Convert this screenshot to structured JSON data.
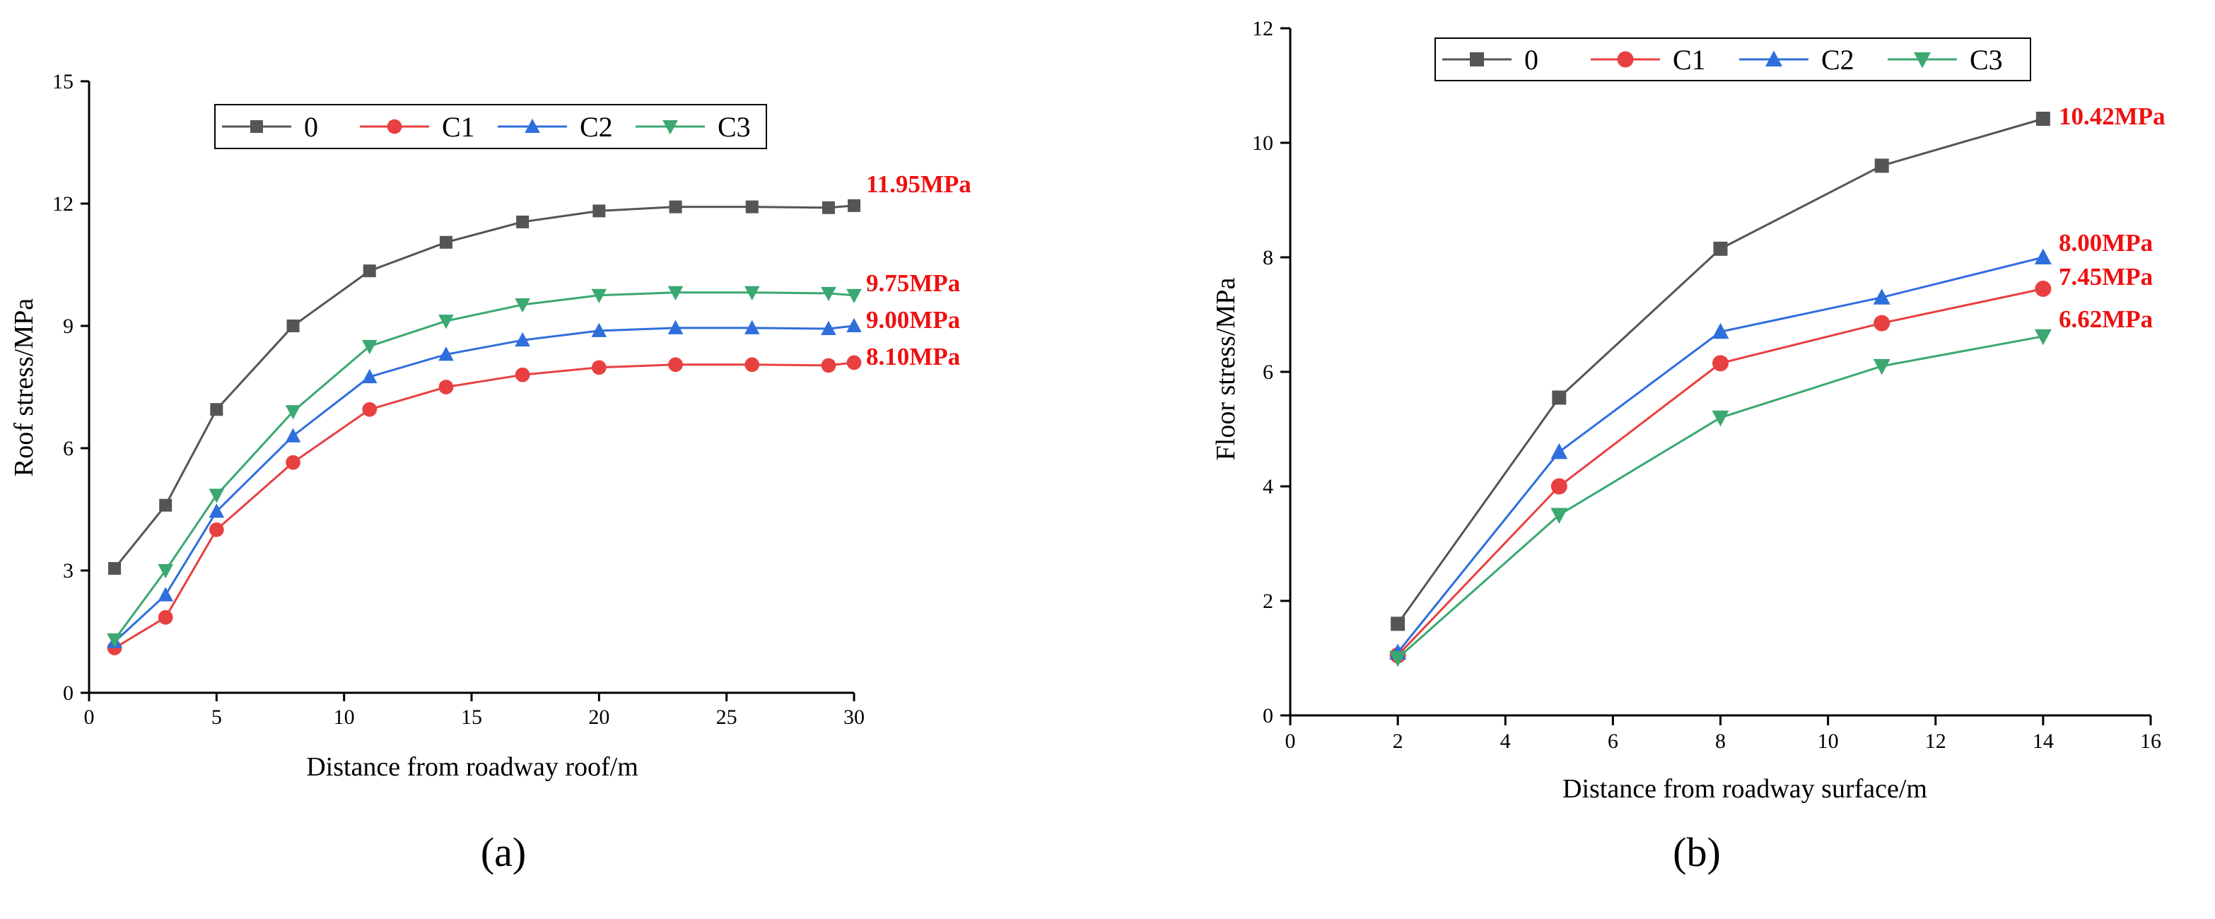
{
  "chart_data": [
    {
      "type": "line",
      "panel": "a",
      "caption": "(a)",
      "xlabel": "Distance from roadway roof/m",
      "ylabel": "Roof stress/MPa",
      "xlim": [
        0,
        30
      ],
      "ylim": [
        0,
        15
      ],
      "xticks": [
        0,
        5,
        10,
        15,
        20,
        25,
        30
      ],
      "yticks": [
        0,
        3,
        6,
        9,
        12,
        15
      ],
      "legend_position": "top-center",
      "x": [
        1,
        3,
        5,
        8,
        11,
        14,
        17,
        20,
        23,
        26,
        29,
        30
      ],
      "series": [
        {
          "name": "0",
          "marker": "square",
          "color": "#555555",
          "values": [
            3.05,
            4.6,
            6.95,
            9.0,
            10.35,
            11.05,
            11.55,
            11.82,
            11.92,
            11.92,
            11.9,
            11.95
          ]
        },
        {
          "name": "C1",
          "marker": "circle",
          "color": "#e84040",
          "values": [
            1.1,
            1.85,
            4.0,
            5.65,
            6.95,
            7.5,
            7.8,
            7.98,
            8.05,
            8.05,
            8.03,
            8.1
          ]
        },
        {
          "name": "C2",
          "marker": "triangle-up",
          "color": "#2f6fdc",
          "values": [
            1.25,
            2.4,
            4.45,
            6.3,
            7.75,
            8.3,
            8.65,
            8.88,
            8.95,
            8.95,
            8.93,
            9.0
          ]
        },
        {
          "name": "C3",
          "marker": "triangle-down",
          "color": "#3aa870",
          "values": [
            1.3,
            3.0,
            4.85,
            6.9,
            8.5,
            9.12,
            9.52,
            9.75,
            9.82,
            9.82,
            9.8,
            9.75
          ]
        }
      ],
      "end_labels": [
        {
          "series": "0",
          "text": "11.95MPa",
          "color": "#ee1111"
        },
        {
          "series": "C3",
          "text": "9.75MPa",
          "color": "#ee1111"
        },
        {
          "series": "C2",
          "text": "9.00MPa",
          "color": "#ee1111"
        },
        {
          "series": "C1",
          "text": "8.10MPa",
          "color": "#ee1111"
        }
      ]
    },
    {
      "type": "line",
      "panel": "b",
      "caption": "(b)",
      "xlabel": "Distance from roadway surface/m",
      "ylabel": "Floor stress/MPa",
      "xlim": [
        0,
        16
      ],
      "ylim": [
        0,
        12
      ],
      "xticks": [
        0,
        2,
        4,
        6,
        8,
        10,
        12,
        14,
        16
      ],
      "yticks": [
        0,
        2,
        4,
        6,
        8,
        10,
        12
      ],
      "legend_position": "top-left",
      "x": [
        2,
        5,
        8,
        11,
        14
      ],
      "series": [
        {
          "name": "0",
          "marker": "square",
          "color": "#555555",
          "values": [
            1.6,
            5.55,
            8.15,
            9.6,
            10.42
          ]
        },
        {
          "name": "C1",
          "marker": "circle",
          "color": "#e84040",
          "values": [
            1.05,
            4.0,
            6.15,
            6.85,
            7.45
          ]
        },
        {
          "name": "C2",
          "marker": "triangle-up",
          "color": "#2f6fdc",
          "values": [
            1.1,
            4.6,
            6.7,
            7.3,
            8.0
          ]
        },
        {
          "name": "C3",
          "marker": "triangle-down",
          "color": "#3aa870",
          "values": [
            1.0,
            3.5,
            5.2,
            6.1,
            6.62
          ]
        }
      ],
      "end_labels": [
        {
          "series": "0",
          "text": "10.42MPa",
          "color": "#ee1111"
        },
        {
          "series": "C2",
          "text": "8.00MPa",
          "color": "#ee1111"
        },
        {
          "series": "C1",
          "text": "7.45MPa",
          "color": "#ee1111"
        },
        {
          "series": "C3",
          "text": "6.62MPa",
          "color": "#ee1111"
        }
      ]
    }
  ]
}
